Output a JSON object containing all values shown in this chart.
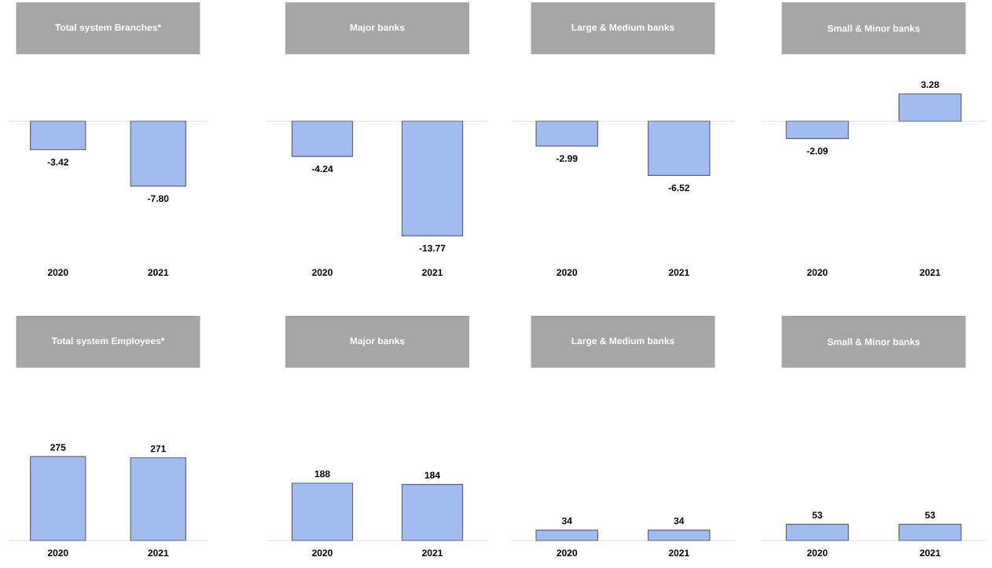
{
  "chart_data": [
    {
      "type": "bar",
      "title": "Total system Branches*",
      "categories": [
        "2020",
        "2021"
      ],
      "values": [
        -3.42,
        -7.8
      ],
      "value_labels": [
        "-3.42",
        "-7.80"
      ],
      "color": "#a3bcef"
    },
    {
      "type": "bar",
      "title": "Major banks",
      "categories": [
        "2020",
        "2021"
      ],
      "values": [
        -4.24,
        -13.77
      ],
      "value_labels": [
        "-4.24",
        "-13.77"
      ],
      "color": "#a3bcef"
    },
    {
      "type": "bar",
      "title": "Large & Medium banks",
      "categories": [
        "2020",
        "2021"
      ],
      "values": [
        -2.99,
        -6.52
      ],
      "value_labels": [
        "-2.99",
        "-6.52"
      ],
      "color": "#a3bcef"
    },
    {
      "type": "bar",
      "title": "Small & Minor banks",
      "categories": [
        "2020",
        "2021"
      ],
      "values": [
        -2.09,
        3.28
      ],
      "value_labels": [
        "-2.09",
        "3.28"
      ],
      "color": "#a3bcef"
    },
    {
      "type": "bar",
      "title": "Total system Employees*",
      "categories": [
        "2020",
        "2021"
      ],
      "values": [
        275,
        271
      ],
      "value_labels": [
        "275",
        "271"
      ],
      "color": "#a3bcef"
    },
    {
      "type": "bar",
      "title": "Major banks",
      "categories": [
        "2020",
        "2021"
      ],
      "values": [
        188,
        184
      ],
      "value_labels": [
        "188",
        "184"
      ],
      "color": "#a3bcef"
    },
    {
      "type": "bar",
      "title": "Large & Medium banks",
      "categories": [
        "2020",
        "2021"
      ],
      "values": [
        34,
        34
      ],
      "value_labels": [
        "34",
        "34"
      ],
      "color": "#a3bcef"
    },
    {
      "type": "bar",
      "title": "Small & Minor banks",
      "categories": [
        "2020",
        "2021"
      ],
      "values": [
        53,
        53
      ],
      "value_labels": [
        "53",
        "53"
      ],
      "color": "#a3bcef"
    }
  ]
}
